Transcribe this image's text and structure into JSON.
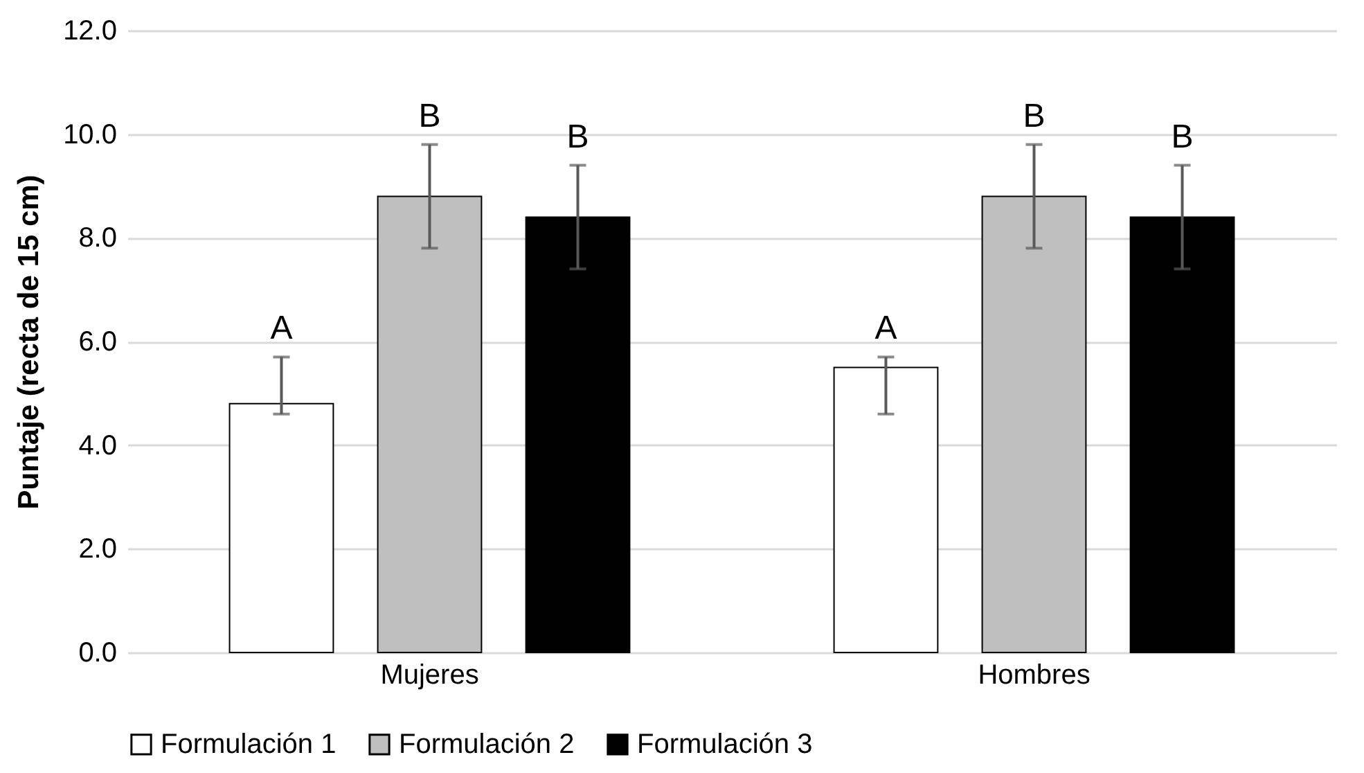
{
  "chart_data": {
    "type": "bar",
    "ylabel": "Puntaje (recta de 15 cm)",
    "categories": [
      "Mujeres",
      "Hombres"
    ],
    "series": [
      {
        "name": "Formulación 1",
        "color": "#ffffff",
        "values": [
          4.8,
          5.5
        ],
        "errors": [
          [
            4.6,
            5.7
          ],
          [
            4.6,
            5.7
          ]
        ]
      },
      {
        "name": "Formulación 2",
        "color": "#bfbfbf",
        "values": [
          8.8,
          8.8
        ],
        "errors": [
          1.0,
          1.0
        ]
      },
      {
        "name": "Formulación 3",
        "color": "#000000",
        "values": [
          8.4,
          8.4
        ],
        "errors": [
          1.0,
          1.0
        ]
      }
    ],
    "ylim": [
      0,
      12
    ],
    "yticks": [
      {
        "value": 0,
        "label": "0.0"
      },
      {
        "value": 2,
        "label": "2.0"
      },
      {
        "value": 4,
        "label": "4.0"
      },
      {
        "value": 6,
        "label": "6.0"
      },
      {
        "value": 8,
        "label": "8.0"
      },
      {
        "value": 10,
        "label": "10.0"
      },
      {
        "value": 12,
        "label": "12.0"
      }
    ],
    "grid": "y",
    "legend": "bottom",
    "annotations": [
      "A",
      "B",
      "B",
      "A",
      "B",
      "B"
    ]
  }
}
